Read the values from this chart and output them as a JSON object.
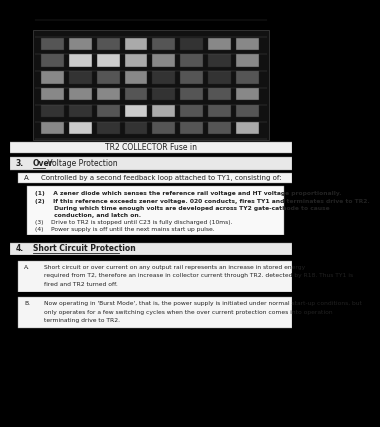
{
  "bg_color": "#000000",
  "page_bg": "#ffffff",
  "caption": "TR2 COLLECTOR Fuse in",
  "section3_num": "3.",
  "section3_bold": "Over",
  "section3_rest": " Voltage Protection",
  "section3A": "A.",
  "section3A_text": "Controlled by a second feedback loop attached to TY1, consisting of:",
  "item1": "(1)    A zener diode which senses the reference rail voltage and HT voltage proportionally.",
  "item2a": "(2)    If this reference exceeds zener voltage. 020 conducts, fires TY1 and terminates drive to TR2.",
  "item2b": "         During which time enough volts are developed across TY2 gate-cathode to cause",
  "item2c": "         conduction, and latch on.",
  "item3": "(3)    Drive to TR2 is stopped until C23 is fully discharged (10ms).",
  "item4": "(4)    Power supply is off until the next mains start up pulse.",
  "section4_num": "4.",
  "section4_bold": "Short Circuit Protection",
  "section4A": "A.",
  "section4A_line1": "Short circuit or over current on any output rail represents an increase in stored energy",
  "section4A_line2": "required from T2, therefore an increase in collector current through TR2. detected by R18. Thus TY1 is",
  "section4A_line3": "fired and TR2 turned off.",
  "section4B": "B.",
  "section4B_line1": "Now operating in 'Burst Mode', that is, the power supply is initiated under normal start-up conditions, but",
  "section4B_line2": "only operates for a few switching cycles when the over current protection comes into operation",
  "section4B_line3": "terminating drive to TR2."
}
